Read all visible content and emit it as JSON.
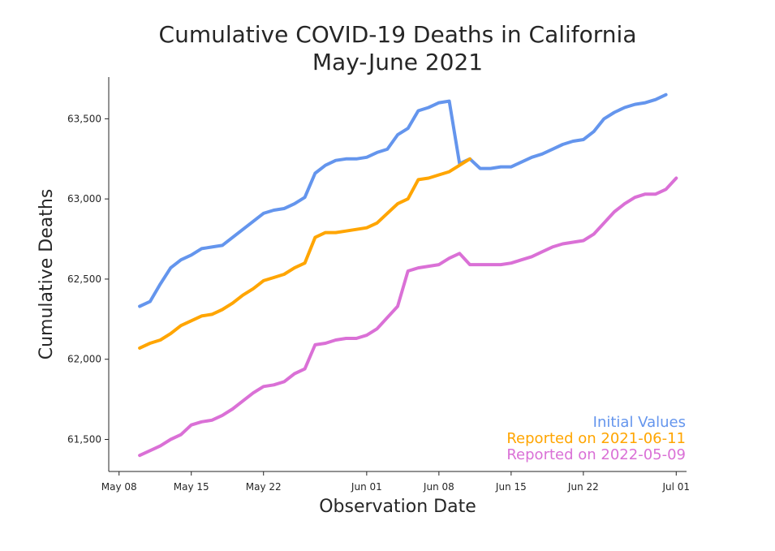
{
  "chart_data": {
    "type": "line",
    "title": [
      "Cumulative COVID-19 Deaths in California",
      "May-June 2021"
    ],
    "xlabel": "Observation Date",
    "ylabel": "Cumulative Deaths",
    "xlim": [
      "2021-05-07",
      "2021-07-02"
    ],
    "ylim": [
      61300,
      63760
    ],
    "xticks": [
      {
        "date": "2021-05-08",
        "label": "May 08"
      },
      {
        "date": "2021-05-15",
        "label": "May 15"
      },
      {
        "date": "2021-05-22",
        "label": "May 22"
      },
      {
        "date": "2021-06-01",
        "label": "Jun 01"
      },
      {
        "date": "2021-06-08",
        "label": "Jun 08"
      },
      {
        "date": "2021-06-15",
        "label": "Jun 15"
      },
      {
        "date": "2021-06-22",
        "label": "Jun 22"
      },
      {
        "date": "2021-07-01",
        "label": "Jul 01"
      }
    ],
    "yticks": [
      {
        "value": 61500,
        "label": "61,500"
      },
      {
        "value": 62000,
        "label": "62,000"
      },
      {
        "value": 62500,
        "label": "62,500"
      },
      {
        "value": 63000,
        "label": "63,000"
      },
      {
        "value": 63500,
        "label": "63,500"
      }
    ],
    "grid": false,
    "legend_position": "bottom-right",
    "series": [
      {
        "name": "Initial Values",
        "color": "#6495ED",
        "points": [
          [
            "2021-05-10",
            62330
          ],
          [
            "2021-05-11",
            62360
          ],
          [
            "2021-05-12",
            62470
          ],
          [
            "2021-05-13",
            62570
          ],
          [
            "2021-05-14",
            62620
          ],
          [
            "2021-05-15",
            62650
          ],
          [
            "2021-05-16",
            62690
          ],
          [
            "2021-05-17",
            62700
          ],
          [
            "2021-05-18",
            62710
          ],
          [
            "2021-05-19",
            62760
          ],
          [
            "2021-05-20",
            62810
          ],
          [
            "2021-05-21",
            62860
          ],
          [
            "2021-05-22",
            62910
          ],
          [
            "2021-05-23",
            62930
          ],
          [
            "2021-05-24",
            62940
          ],
          [
            "2021-05-25",
            62970
          ],
          [
            "2021-05-26",
            63010
          ],
          [
            "2021-05-27",
            63160
          ],
          [
            "2021-05-28",
            63210
          ],
          [
            "2021-05-29",
            63240
          ],
          [
            "2021-05-30",
            63250
          ],
          [
            "2021-05-31",
            63250
          ],
          [
            "2021-06-01",
            63260
          ],
          [
            "2021-06-02",
            63290
          ],
          [
            "2021-06-03",
            63310
          ],
          [
            "2021-06-04",
            63400
          ],
          [
            "2021-06-05",
            63440
          ],
          [
            "2021-06-06",
            63550
          ],
          [
            "2021-06-07",
            63570
          ],
          [
            "2021-06-08",
            63600
          ],
          [
            "2021-06-09",
            63610
          ],
          [
            "2021-06-10",
            63220
          ],
          [
            "2021-06-11",
            63250
          ],
          [
            "2021-06-12",
            63190
          ],
          [
            "2021-06-13",
            63190
          ],
          [
            "2021-06-14",
            63200
          ],
          [
            "2021-06-15",
            63200
          ],
          [
            "2021-06-16",
            63230
          ],
          [
            "2021-06-17",
            63260
          ],
          [
            "2021-06-18",
            63280
          ],
          [
            "2021-06-19",
            63310
          ],
          [
            "2021-06-20",
            63340
          ],
          [
            "2021-06-21",
            63360
          ],
          [
            "2021-06-22",
            63370
          ],
          [
            "2021-06-23",
            63420
          ],
          [
            "2021-06-24",
            63500
          ],
          [
            "2021-06-25",
            63540
          ],
          [
            "2021-06-26",
            63570
          ],
          [
            "2021-06-27",
            63590
          ],
          [
            "2021-06-28",
            63600
          ],
          [
            "2021-06-29",
            63620
          ],
          [
            "2021-06-30",
            63650
          ]
        ]
      },
      {
        "name": "Reported on 2021-06-11",
        "color": "#FFA500",
        "points": [
          [
            "2021-05-10",
            62070
          ],
          [
            "2021-05-11",
            62100
          ],
          [
            "2021-05-12",
            62120
          ],
          [
            "2021-05-13",
            62160
          ],
          [
            "2021-05-14",
            62210
          ],
          [
            "2021-05-15",
            62240
          ],
          [
            "2021-05-16",
            62270
          ],
          [
            "2021-05-17",
            62280
          ],
          [
            "2021-05-18",
            62310
          ],
          [
            "2021-05-19",
            62350
          ],
          [
            "2021-05-20",
            62400
          ],
          [
            "2021-05-21",
            62440
          ],
          [
            "2021-05-22",
            62490
          ],
          [
            "2021-05-23",
            62510
          ],
          [
            "2021-05-24",
            62530
          ],
          [
            "2021-05-25",
            62570
          ],
          [
            "2021-05-26",
            62600
          ],
          [
            "2021-05-27",
            62760
          ],
          [
            "2021-05-28",
            62790
          ],
          [
            "2021-05-29",
            62790
          ],
          [
            "2021-05-30",
            62800
          ],
          [
            "2021-05-31",
            62810
          ],
          [
            "2021-06-01",
            62820
          ],
          [
            "2021-06-02",
            62850
          ],
          [
            "2021-06-03",
            62910
          ],
          [
            "2021-06-04",
            62970
          ],
          [
            "2021-06-05",
            63000
          ],
          [
            "2021-06-06",
            63120
          ],
          [
            "2021-06-07",
            63130
          ],
          [
            "2021-06-08",
            63150
          ],
          [
            "2021-06-09",
            63170
          ],
          [
            "2021-06-10",
            63210
          ],
          [
            "2021-06-11",
            63250
          ]
        ]
      },
      {
        "name": "Reported on 2022-05-09",
        "color": "#DA70D6",
        "points": [
          [
            "2021-05-10",
            61400
          ],
          [
            "2021-05-11",
            61430
          ],
          [
            "2021-05-12",
            61460
          ],
          [
            "2021-05-13",
            61500
          ],
          [
            "2021-05-14",
            61530
          ],
          [
            "2021-05-15",
            61590
          ],
          [
            "2021-05-16",
            61610
          ],
          [
            "2021-05-17",
            61620
          ],
          [
            "2021-05-18",
            61650
          ],
          [
            "2021-05-19",
            61690
          ],
          [
            "2021-05-20",
            61740
          ],
          [
            "2021-05-21",
            61790
          ],
          [
            "2021-05-22",
            61830
          ],
          [
            "2021-05-23",
            61840
          ],
          [
            "2021-05-24",
            61860
          ],
          [
            "2021-05-25",
            61910
          ],
          [
            "2021-05-26",
            61940
          ],
          [
            "2021-05-27",
            62090
          ],
          [
            "2021-05-28",
            62100
          ],
          [
            "2021-05-29",
            62120
          ],
          [
            "2021-05-30",
            62130
          ],
          [
            "2021-05-31",
            62130
          ],
          [
            "2021-06-01",
            62150
          ],
          [
            "2021-06-02",
            62190
          ],
          [
            "2021-06-03",
            62260
          ],
          [
            "2021-06-04",
            62330
          ],
          [
            "2021-06-05",
            62550
          ],
          [
            "2021-06-06",
            62570
          ],
          [
            "2021-06-07",
            62580
          ],
          [
            "2021-06-08",
            62590
          ],
          [
            "2021-06-09",
            62630
          ],
          [
            "2021-06-10",
            62660
          ],
          [
            "2021-06-11",
            62590
          ],
          [
            "2021-06-12",
            62590
          ],
          [
            "2021-06-13",
            62590
          ],
          [
            "2021-06-14",
            62590
          ],
          [
            "2021-06-15",
            62600
          ],
          [
            "2021-06-16",
            62620
          ],
          [
            "2021-06-17",
            62640
          ],
          [
            "2021-06-18",
            62670
          ],
          [
            "2021-06-19",
            62700
          ],
          [
            "2021-06-20",
            62720
          ],
          [
            "2021-06-21",
            62730
          ],
          [
            "2021-06-22",
            62740
          ],
          [
            "2021-06-23",
            62780
          ],
          [
            "2021-06-24",
            62850
          ],
          [
            "2021-06-25",
            62920
          ],
          [
            "2021-06-26",
            62970
          ],
          [
            "2021-06-27",
            63010
          ],
          [
            "2021-06-28",
            63030
          ],
          [
            "2021-06-29",
            63030
          ],
          [
            "2021-06-30",
            63060
          ],
          [
            "2021-07-01",
            63130
          ]
        ]
      }
    ]
  }
}
